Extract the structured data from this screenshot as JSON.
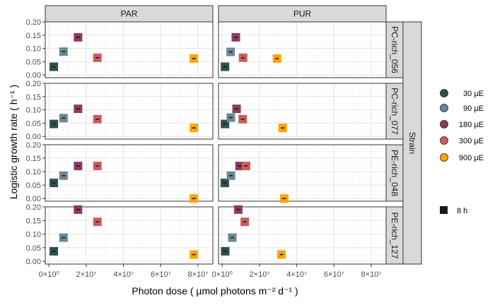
{
  "chart_data": {
    "type": "scatter",
    "xlabel": "Photon dose ( µmol photons  m⁻²  d⁻¹ )",
    "ylabel": "Logistic growth rate  ( h⁻¹ )",
    "xlim": [
      -2000000,
      88000000
    ],
    "ylim": [
      -0.01,
      0.2
    ],
    "x_ticks": [
      {
        "value": 0,
        "label": "0×10⁰"
      },
      {
        "value": 20000000,
        "label": "2×10⁷"
      },
      {
        "value": 40000000,
        "label": "4×10⁷"
      },
      {
        "value": 60000000,
        "label": "6×10⁷"
      },
      {
        "value": 80000000,
        "label": "8×10⁷"
      }
    ],
    "y_ticks": [
      {
        "value": 0.0,
        "label": "0.00"
      },
      {
        "value": 0.05,
        "label": "0.05"
      },
      {
        "value": 0.1,
        "label": "0.10"
      },
      {
        "value": 0.15,
        "label": "0.15"
      },
      {
        "value": 0.2,
        "label": "0.20"
      }
    ],
    "columns": [
      "PAR",
      "PUR"
    ],
    "rows": [
      "PC-rich_056",
      "PC-rich_077",
      "PE-rich_048",
      "PE-rich_127"
    ],
    "row_group_label": "Strain",
    "light_levels": [
      "30 µE",
      "90 µE",
      "180 µE",
      "300 µE",
      "900 µE"
    ],
    "colors": {
      "30 µE": "#2f4f4f",
      "90 µE": "#6a8896",
      "180 µE": "#8b3a62",
      "300 µE": "#cd5c5c",
      "900 µE": "#ffa500"
    },
    "legend": {
      "position": "right",
      "items": [
        {
          "label": "30 µE",
          "key": "30 µE"
        },
        {
          "label": "90 µE",
          "key": "90 µE"
        },
        {
          "label": "180 µE",
          "key": "180 µE"
        },
        {
          "label": "300 µE",
          "key": "300 µE"
        },
        {
          "label": "900 µE",
          "key": "900 µE"
        }
      ],
      "shape_item": {
        "label": "8 h"
      }
    },
    "grid": true,
    "panels": [
      {
        "column": "PAR",
        "row": "PC-rich_056",
        "points": [
          {
            "level": "30 µE",
            "x": 2600000,
            "y": 0.031
          },
          {
            "level": "90 µE",
            "x": 7800000,
            "y": 0.088
          },
          {
            "level": "180 µE",
            "x": 15600000,
            "y": 0.142
          },
          {
            "level": "300 µE",
            "x": 26000000,
            "y": 0.065
          },
          {
            "level": "900 µE",
            "x": 77800000,
            "y": 0.062
          }
        ]
      },
      {
        "column": "PUR",
        "row": "PC-rich_056",
        "points": [
          {
            "level": "30 µE",
            "x": 1500000,
            "y": 0.031
          },
          {
            "level": "90 µE",
            "x": 4500000,
            "y": 0.087
          },
          {
            "level": "180 µE",
            "x": 7300000,
            "y": 0.142
          },
          {
            "level": "300 µE",
            "x": 11200000,
            "y": 0.065
          },
          {
            "level": "900 µE",
            "x": 29400000,
            "y": 0.062
          }
        ]
      },
      {
        "column": "PAR",
        "row": "PC-rich_077",
        "points": [
          {
            "level": "30 µE",
            "x": 2600000,
            "y": 0.047
          },
          {
            "level": "90 µE",
            "x": 7800000,
            "y": 0.069
          },
          {
            "level": "180 µE",
            "x": 15600000,
            "y": 0.104
          },
          {
            "level": "300 µE",
            "x": 26000000,
            "y": 0.065
          },
          {
            "level": "900 µE",
            "x": 77800000,
            "y": 0.032
          }
        ]
      },
      {
        "column": "PUR",
        "row": "PC-rich_077",
        "points": [
          {
            "level": "30 µE",
            "x": 1500000,
            "y": 0.047
          },
          {
            "level": "90 µE",
            "x": 4600000,
            "y": 0.071
          },
          {
            "level": "180 µE",
            "x": 7700000,
            "y": 0.104
          },
          {
            "level": "300 µE",
            "x": 11000000,
            "y": 0.065
          },
          {
            "level": "900 µE",
            "x": 32500000,
            "y": 0.032
          }
        ]
      },
      {
        "column": "PAR",
        "row": "PE-rich_048",
        "points": [
          {
            "level": "30 µE",
            "x": 2600000,
            "y": 0.058
          },
          {
            "level": "90 µE",
            "x": 7800000,
            "y": 0.085
          },
          {
            "level": "180 µE",
            "x": 15600000,
            "y": 0.121
          },
          {
            "level": "300 µE",
            "x": 26000000,
            "y": 0.121
          },
          {
            "level": "900 µE",
            "x": 77800000,
            "y": 0.0
          }
        ]
      },
      {
        "column": "PUR",
        "row": "PE-rich_048",
        "points": [
          {
            "level": "30 µE",
            "x": 1400000,
            "y": 0.058
          },
          {
            "level": "90 µE",
            "x": 4700000,
            "y": 0.085
          },
          {
            "level": "180 µE",
            "x": 9300000,
            "y": 0.121
          },
          {
            "level": "300 µE",
            "x": 12800000,
            "y": 0.121
          },
          {
            "level": "900 µE",
            "x": 33300000,
            "y": 0.0
          }
        ]
      },
      {
        "column": "PAR",
        "row": "PE-rich_127",
        "points": [
          {
            "level": "30 µE",
            "x": 2600000,
            "y": 0.037
          },
          {
            "level": "90 µE",
            "x": 7800000,
            "y": 0.087
          },
          {
            "level": "180 µE",
            "x": 15600000,
            "y": 0.19
          },
          {
            "level": "300 µE",
            "x": 26000000,
            "y": 0.145
          },
          {
            "level": "900 µE",
            "x": 77800000,
            "y": 0.025
          }
        ]
      },
      {
        "column": "PUR",
        "row": "PE-rich_127",
        "points": [
          {
            "level": "30 µE",
            "x": 1600000,
            "y": 0.037
          },
          {
            "level": "90 µE",
            "x": 5400000,
            "y": 0.087
          },
          {
            "level": "180 µE",
            "x": 8600000,
            "y": 0.19
          },
          {
            "level": "300 µE",
            "x": 12100000,
            "y": 0.145
          },
          {
            "level": "900 µE",
            "x": 31800000,
            "y": 0.025
          }
        ]
      }
    ]
  }
}
